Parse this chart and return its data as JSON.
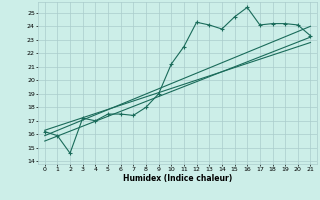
{
  "title": "",
  "xlabel": "Humidex (Indice chaleur)",
  "ylabel": "",
  "bg_color": "#cceee8",
  "grid_color": "#aacccc",
  "line_color": "#1a6b5a",
  "xlim": [
    -0.5,
    21.5
  ],
  "ylim": [
    13.8,
    25.8
  ],
  "xticks": [
    0,
    1,
    2,
    3,
    4,
    5,
    6,
    7,
    8,
    9,
    10,
    11,
    12,
    13,
    14,
    15,
    16,
    17,
    18,
    19,
    20,
    21
  ],
  "yticks": [
    14,
    15,
    16,
    17,
    18,
    19,
    20,
    21,
    22,
    23,
    24,
    25
  ],
  "data_x": [
    0,
    1,
    2,
    3,
    4,
    5,
    6,
    7,
    8,
    9,
    10,
    11,
    12,
    13,
    14,
    15,
    16,
    17,
    18,
    19,
    20,
    21
  ],
  "data_y": [
    16.2,
    15.9,
    14.6,
    17.2,
    17.0,
    17.5,
    17.5,
    17.4,
    18.0,
    19.0,
    21.2,
    22.5,
    24.3,
    24.1,
    23.8,
    24.7,
    25.4,
    24.1,
    24.2,
    24.2,
    24.1,
    23.3
  ],
  "trend1_x": [
    0,
    21
  ],
  "trend1_y": [
    15.5,
    23.2
  ],
  "trend2_x": [
    0,
    21
  ],
  "trend2_y": [
    15.9,
    24.0
  ],
  "trend3_x": [
    0,
    21
  ],
  "trend3_y": [
    16.3,
    22.8
  ]
}
